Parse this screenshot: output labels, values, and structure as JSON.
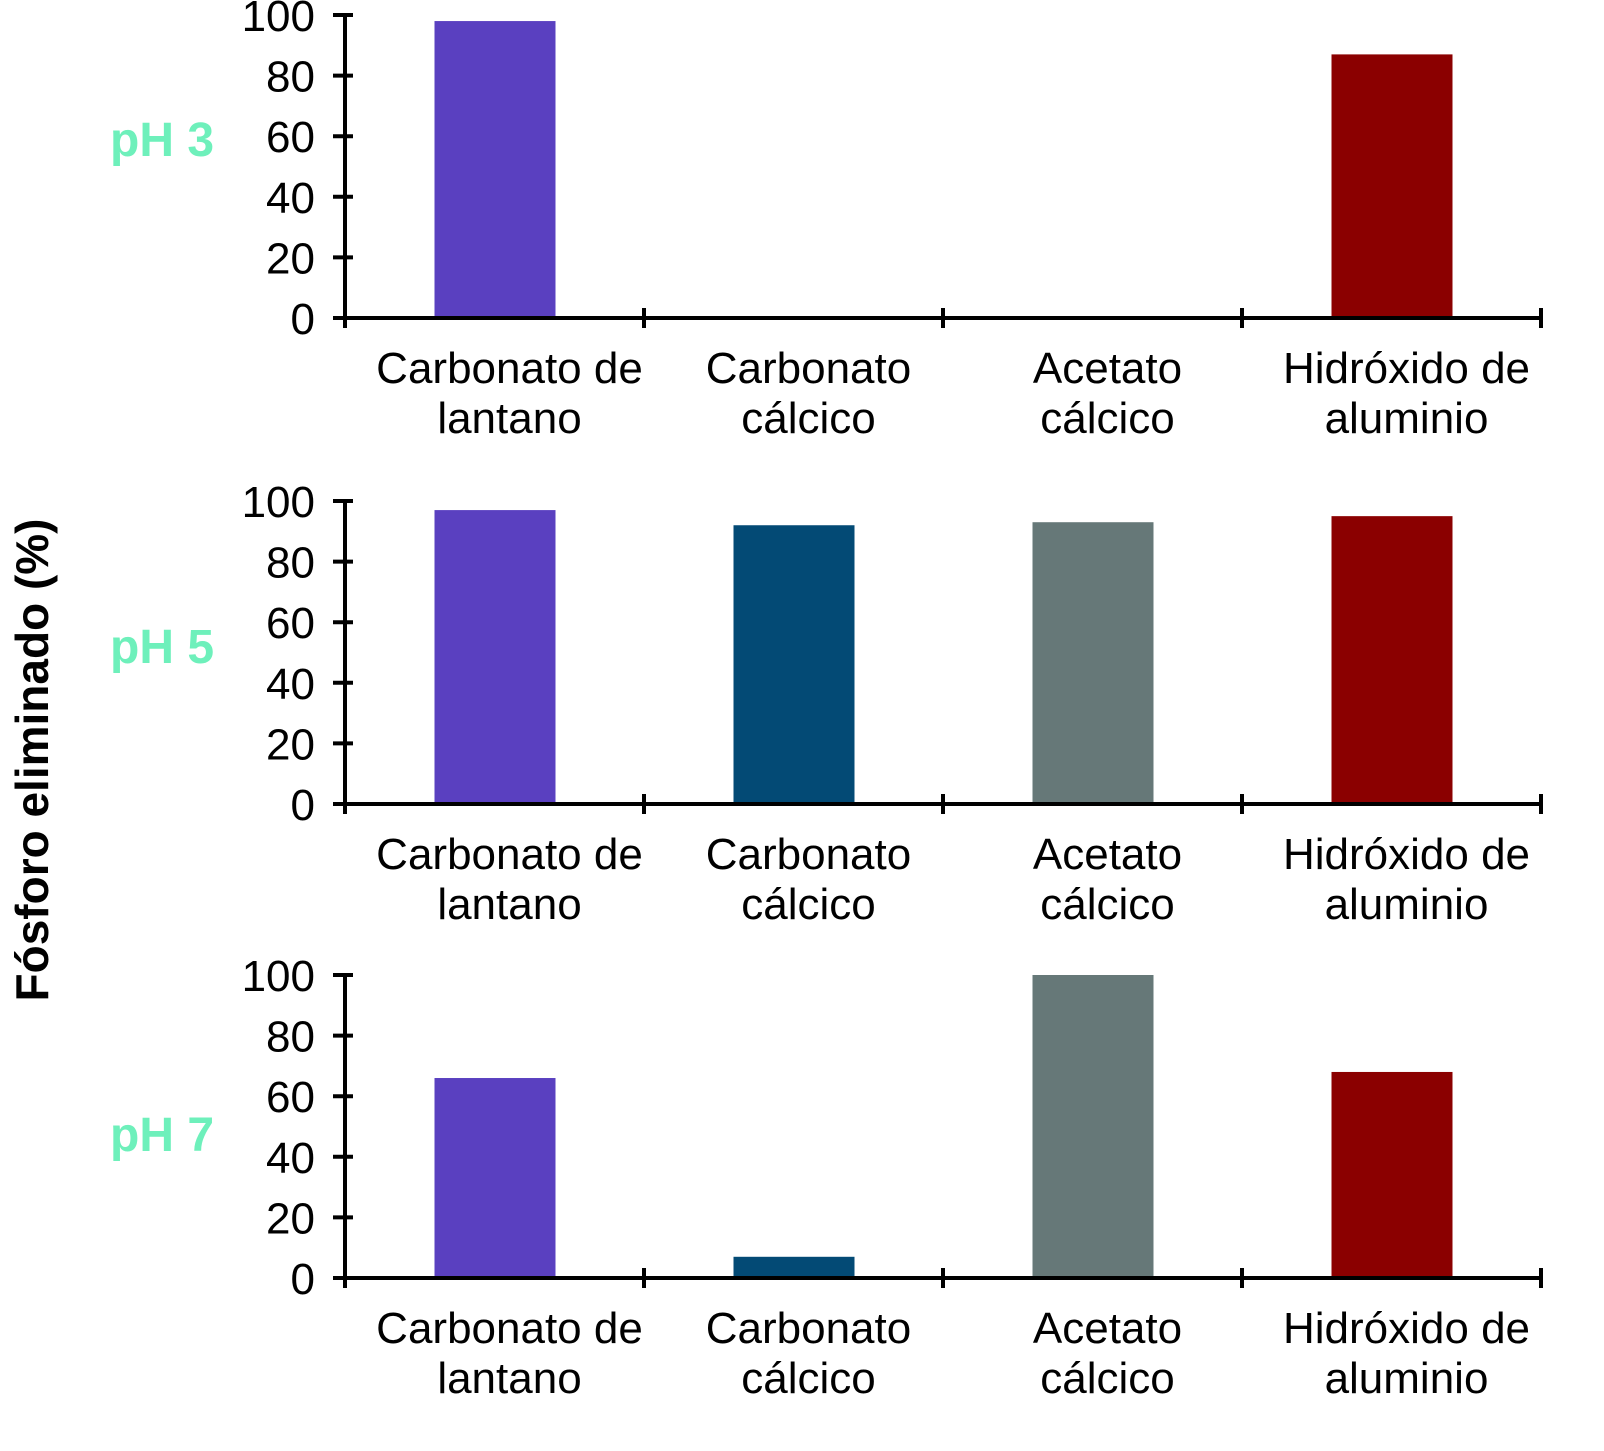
{
  "chart_data": {
    "type": "bar",
    "ylabel": "Fósforo eliminado (%)",
    "ylim": [
      0,
      100
    ],
    "yticks": [
      "0",
      "20",
      "40",
      "60",
      "80",
      "100"
    ],
    "grid": false,
    "categories": [
      {
        "lines": [
          "Carbonato de",
          "lantano"
        ]
      },
      {
        "lines": [
          "Carbonato",
          "cálcico"
        ]
      },
      {
        "lines": [
          "Acetato",
          "cálcico"
        ]
      },
      {
        "lines": [
          "Hidróxido de",
          "aluminio"
        ]
      }
    ],
    "bar_colors": [
      "#5a40c0",
      "#034a75",
      "#667878",
      "#8b0000"
    ],
    "panel_label_color": "#6ef0bb",
    "panels": [
      {
        "label": "pH 3",
        "values": [
          98,
          0,
          0,
          87
        ]
      },
      {
        "label": "pH 5",
        "values": [
          97,
          92,
          93,
          95
        ]
      },
      {
        "label": "pH 7",
        "values": [
          66,
          7,
          100,
          68
        ]
      }
    ]
  }
}
